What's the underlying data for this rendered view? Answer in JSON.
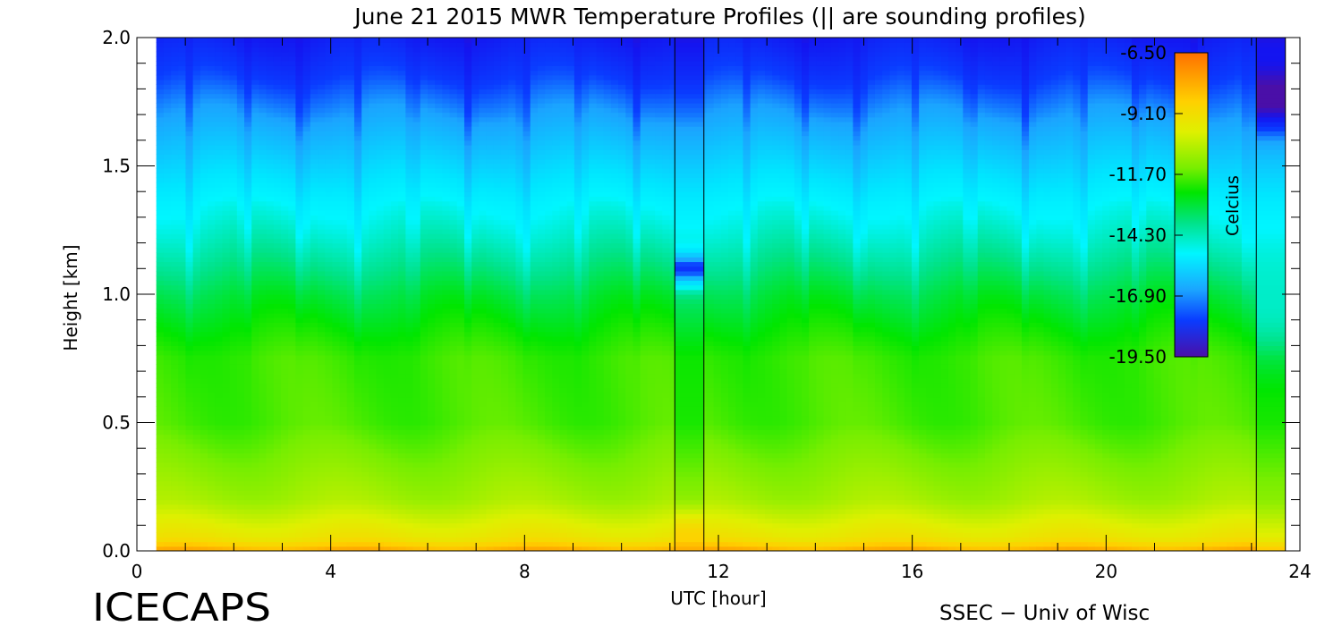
{
  "chart_data": {
    "type": "heatmap",
    "title": "June 21 2015 MWR Temperature Profiles (|| are sounding profiles)",
    "xlabel": "UTC [hour]",
    "ylabel": "Height [km]",
    "xlim": [
      0,
      24
    ],
    "ylim": [
      0,
      2.0
    ],
    "x_ticks": [
      "0",
      "4",
      "8",
      "12",
      "16",
      "20",
      "24"
    ],
    "x_tick_values": [
      0,
      4,
      8,
      12,
      16,
      20,
      24
    ],
    "y_ticks": [
      "0.0",
      "0.5",
      "1.0",
      "1.5",
      "2.0"
    ],
    "y_tick_values": [
      0,
      0.5,
      1.0,
      1.5,
      2.0
    ],
    "mwr_time_range": [
      0.4,
      23.1
    ],
    "soundings": [
      {
        "t_start": 11.1,
        "t_end": 11.7
      },
      {
        "t_start": 23.1,
        "t_end": 23.7
      }
    ],
    "colorbar": {
      "label": "Celcius",
      "tick_labels": [
        "-6.50",
        "-9.10",
        "-11.70",
        "-14.30",
        "-16.90",
        "-19.50"
      ],
      "tick_values": [
        -6.5,
        -9.1,
        -11.7,
        -14.3,
        -16.9,
        -19.5
      ],
      "range": [
        -19.5,
        -6.5
      ]
    },
    "colors": {
      "warm": "#ff7a00",
      "yellow": "#e6f000",
      "green": "#00e600",
      "cyan": "#00f6ff",
      "blue": "#0a36ff",
      "cold": "#4a0fa8"
    },
    "typical_profile_celsius": {
      "heights_km": [
        0.0,
        0.05,
        0.2,
        0.5,
        0.75,
        1.0,
        1.2,
        1.35,
        1.5,
        1.7,
        1.85,
        2.0
      ],
      "temperatures": [
        -7.5,
        -9.0,
        -10.5,
        -11.6,
        -11.7,
        -12.6,
        -13.6,
        -14.3,
        -15.4,
        -16.9,
        -17.8,
        -18.5
      ]
    }
  },
  "footer": {
    "left_logo": "ICECAPS",
    "right_credit": "SSEC − Univ of Wisc"
  }
}
